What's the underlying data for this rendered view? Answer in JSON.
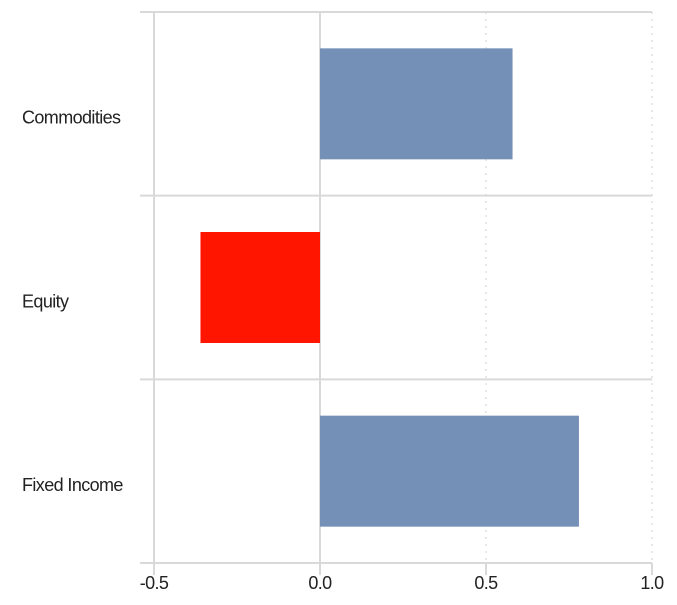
{
  "chart_data": {
    "type": "hbar",
    "categories": [
      "Commodities",
      "Equity",
      "Fixed Income"
    ],
    "values": [
      0.58,
      -0.36,
      0.78
    ],
    "colors": [
      "#7590b7",
      "#ff1500",
      "#7590b7"
    ],
    "xlim": [
      -0.5,
      1.0
    ],
    "xticks": [
      {
        "value": -0.5,
        "label": "-0.5"
      },
      {
        "value": 0,
        "label": "0.0"
      },
      {
        "value": 0.5,
        "label": "0.5"
      },
      {
        "value": 1.0,
        "label": "1.0"
      }
    ],
    "grid": true
  }
}
